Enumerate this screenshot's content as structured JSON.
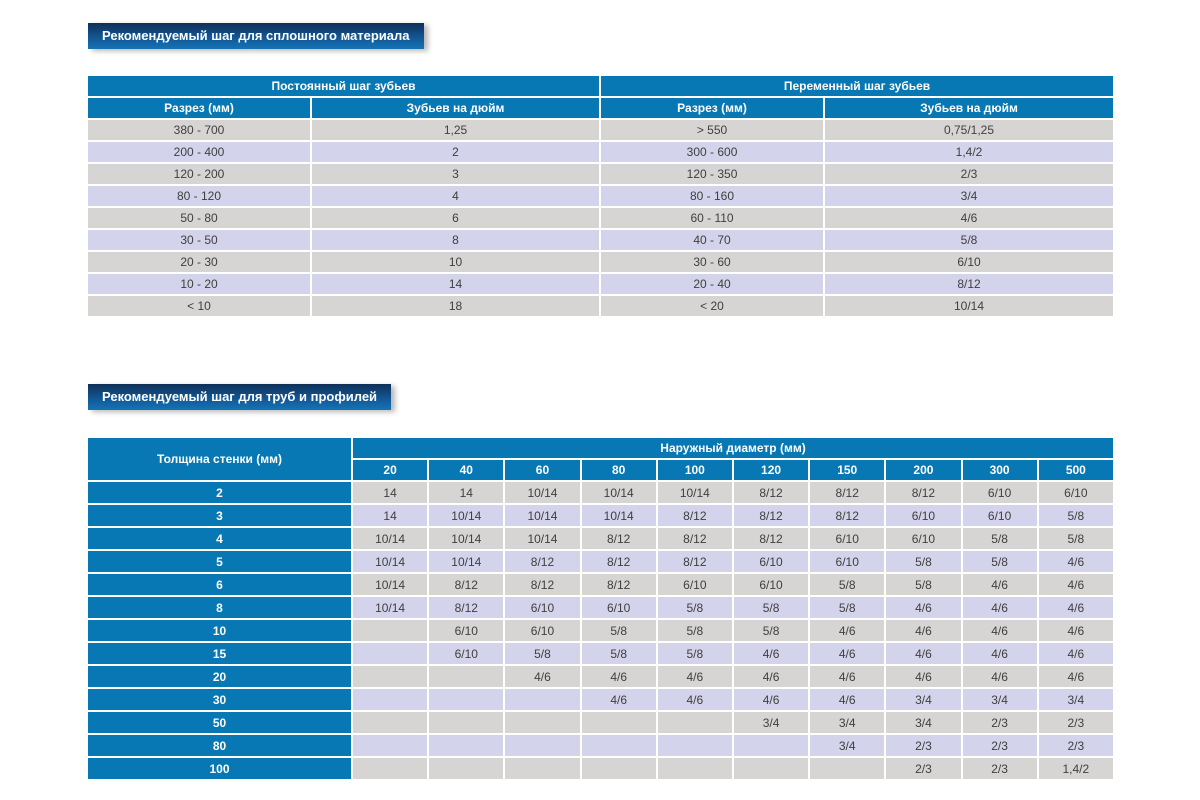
{
  "colors": {
    "header_blue": "#0878b4",
    "row_gray": "#d7d5d3",
    "row_lavender": "#d3d3eb",
    "badge_gradient_top": "#0f3058",
    "badge_gradient_bottom": "#1574b4",
    "body_text": "#3f3f3f",
    "page_background": "#ffffff"
  },
  "section1": {
    "badge": "Рекомендуемый шаг для сплошного материала",
    "table": {
      "group_headers": [
        "Постоянный шаг зубьев",
        "Переменный шаг зубьев"
      ],
      "sub_headers": [
        "Разрез (мм)",
        "Зубьев на дюйм",
        "Разрез (мм)",
        "Зубьев на дюйм"
      ],
      "rows": [
        [
          "380 - 700",
          "1,25",
          "> 550",
          "0,75/1,25"
        ],
        [
          "200 - 400",
          "2",
          "300 - 600",
          "1,4/2"
        ],
        [
          "120 - 200",
          "3",
          "120 - 350",
          "2/3"
        ],
        [
          "80 - 120",
          "4",
          "80 - 160",
          "3/4"
        ],
        [
          "50 - 80",
          "6",
          "60 - 110",
          "4/6"
        ],
        [
          "30 - 50",
          "8",
          "40 - 70",
          "5/8"
        ],
        [
          "20 - 30",
          "10",
          "30 - 60",
          "6/10"
        ],
        [
          "10 - 20",
          "14",
          "20 - 40",
          "8/12"
        ],
        [
          "< 10",
          "18",
          "< 20",
          "10/14"
        ]
      ]
    }
  },
  "section2": {
    "badge": "Рекомендуемый шаг для труб и профилей",
    "table": {
      "corner_header": "Толщина стенки (мм)",
      "group_header": "Наружный диаметр (мм)",
      "diameters": [
        "20",
        "40",
        "60",
        "80",
        "100",
        "120",
        "150",
        "200",
        "300",
        "500"
      ],
      "rows": [
        {
          "thickness": "2",
          "values": [
            "14",
            "14",
            "10/14",
            "10/14",
            "10/14",
            "8/12",
            "8/12",
            "8/12",
            "6/10",
            "6/10"
          ]
        },
        {
          "thickness": "3",
          "values": [
            "14",
            "10/14",
            "10/14",
            "10/14",
            "8/12",
            "8/12",
            "8/12",
            "6/10",
            "6/10",
            "5/8"
          ]
        },
        {
          "thickness": "4",
          "values": [
            "10/14",
            "10/14",
            "10/14",
            "8/12",
            "8/12",
            "8/12",
            "6/10",
            "6/10",
            "5/8",
            "5/8"
          ]
        },
        {
          "thickness": "5",
          "values": [
            "10/14",
            "10/14",
            "8/12",
            "8/12",
            "8/12",
            "6/10",
            "6/10",
            "5/8",
            "5/8",
            "4/6"
          ]
        },
        {
          "thickness": "6",
          "values": [
            "10/14",
            "8/12",
            "8/12",
            "8/12",
            "6/10",
            "6/10",
            "5/8",
            "5/8",
            "4/6",
            "4/6"
          ]
        },
        {
          "thickness": "8",
          "values": [
            "10/14",
            "8/12",
            "6/10",
            "6/10",
            "5/8",
            "5/8",
            "5/8",
            "4/6",
            "4/6",
            "4/6"
          ]
        },
        {
          "thickness": "10",
          "values": [
            "",
            "6/10",
            "6/10",
            "5/8",
            "5/8",
            "5/8",
            "4/6",
            "4/6",
            "4/6",
            "4/6"
          ]
        },
        {
          "thickness": "15",
          "values": [
            "",
            "6/10",
            "5/8",
            "5/8",
            "5/8",
            "4/6",
            "4/6",
            "4/6",
            "4/6",
            "4/6"
          ]
        },
        {
          "thickness": "20",
          "values": [
            "",
            "",
            "4/6",
            "4/6",
            "4/6",
            "4/6",
            "4/6",
            "4/6",
            "4/6",
            "4/6"
          ]
        },
        {
          "thickness": "30",
          "values": [
            "",
            "",
            "",
            "4/6",
            "4/6",
            "4/6",
            "4/6",
            "3/4",
            "3/4",
            "3/4"
          ]
        },
        {
          "thickness": "50",
          "values": [
            "",
            "",
            "",
            "",
            "",
            "3/4",
            "3/4",
            "3/4",
            "2/3",
            "2/3"
          ]
        },
        {
          "thickness": "80",
          "values": [
            "",
            "",
            "",
            "",
            "",
            "",
            "3/4",
            "2/3",
            "2/3",
            "2/3"
          ]
        },
        {
          "thickness": "100",
          "values": [
            "",
            "",
            "",
            "",
            "",
            "",
            "",
            "2/3",
            "2/3",
            "1,4/2"
          ]
        }
      ]
    }
  }
}
